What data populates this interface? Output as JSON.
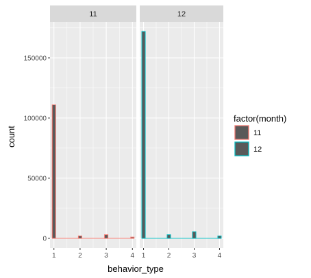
{
  "chart_data": {
    "type": "bar",
    "xlabel": "behavior_type",
    "ylabel": "count",
    "ylim": [
      -8000,
      180000
    ],
    "xlim": [
      0.85,
      4.15
    ],
    "x_ticks": [
      1,
      2,
      3,
      4
    ],
    "x_tick_labels": [
      "1",
      "2",
      "3",
      "4"
    ],
    "y_ticks": [
      0,
      50000,
      100000,
      150000
    ],
    "y_tick_labels": [
      "0",
      "50000",
      "100000",
      "150000"
    ],
    "grid": true,
    "legend": {
      "title": "factor(month)",
      "placement": "right",
      "entries": [
        {
          "label": "11",
          "color": "#F8766D"
        },
        {
          "label": "12",
          "color": "#00BFC4"
        }
      ]
    },
    "panels": [
      {
        "strip_label": "11",
        "color": "#F8766D",
        "bars": [
          {
            "x": 1,
            "count": 111000
          },
          {
            "x": 2,
            "count": 2000
          },
          {
            "x": 3,
            "count": 3000
          },
          {
            "x": 4,
            "count": 1000
          }
        ]
      },
      {
        "strip_label": "12",
        "color": "#00BFC4",
        "bars": [
          {
            "x": 1,
            "count": 172000
          },
          {
            "x": 2,
            "count": 3000
          },
          {
            "x": 3,
            "count": 5500
          },
          {
            "x": 4,
            "count": 2000
          }
        ]
      }
    ],
    "bar_fill": "#595959",
    "panel_background": "#EBEBEB",
    "strip_background": "#D9D9D9"
  }
}
